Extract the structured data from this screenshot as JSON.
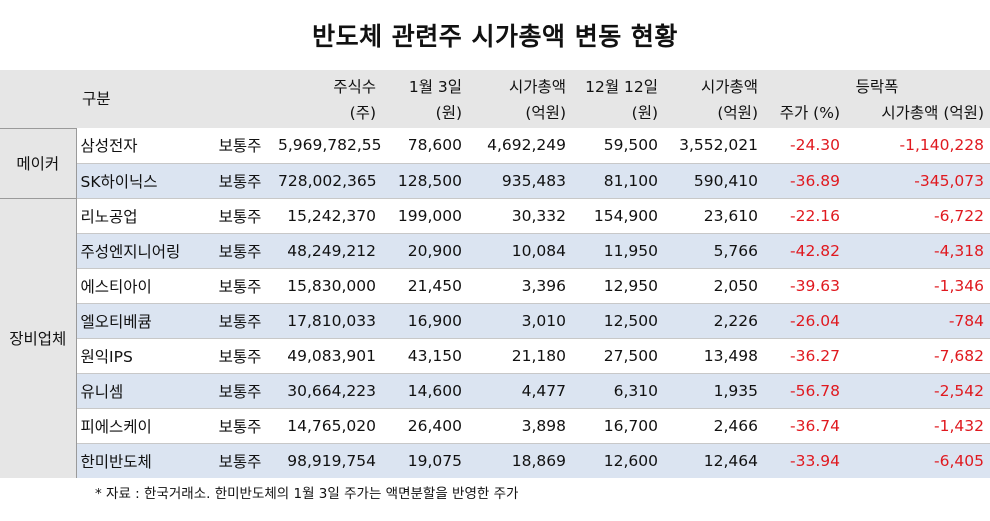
{
  "title": "반도체 관련주 시가총액 변동 현황",
  "header": {
    "category": "구분",
    "shares_1": "주식수",
    "shares_2": "(주)",
    "price_jan3_1": "1월 3일",
    "price_jan3_2": "(원)",
    "mcap_jan3_1": "시가총액",
    "mcap_jan3_2": "(억원)",
    "price_dec12_1": "12월 12일",
    "price_dec12_2": "(원)",
    "mcap_dec12_1": "시가총액",
    "mcap_dec12_2": "(억원)",
    "change_1": "등락폭",
    "change_price": "주가 (%)",
    "change_mcap": "시가총액 (억원)"
  },
  "groups": {
    "maker": "메이커",
    "equipment": "장비업체"
  },
  "rows": [
    {
      "name": "삼성전자",
      "type": "보통주",
      "shares": "5,969,782,550",
      "price_jan3": "78,600",
      "mcap_jan3": "4,692,249",
      "price_dec12": "59,500",
      "mcap_dec12": "3,552,021",
      "chg_price": "-24.30",
      "chg_mcap": "-1,140,228"
    },
    {
      "name": "SK하이닉스",
      "type": "보통주",
      "shares": "728,002,365",
      "price_jan3": "128,500",
      "mcap_jan3": "935,483",
      "price_dec12": "81,100",
      "mcap_dec12": "590,410",
      "chg_price": "-36.89",
      "chg_mcap": "-345,073"
    },
    {
      "name": "리노공업",
      "type": "보통주",
      "shares": "15,242,370",
      "price_jan3": "199,000",
      "mcap_jan3": "30,332",
      "price_dec12": "154,900",
      "mcap_dec12": "23,610",
      "chg_price": "-22.16",
      "chg_mcap": "-6,722"
    },
    {
      "name": "주성엔지니어링",
      "type": "보통주",
      "shares": "48,249,212",
      "price_jan3": "20,900",
      "mcap_jan3": "10,084",
      "price_dec12": "11,950",
      "mcap_dec12": "5,766",
      "chg_price": "-42.82",
      "chg_mcap": "-4,318"
    },
    {
      "name": "에스티아이",
      "type": "보통주",
      "shares": "15,830,000",
      "price_jan3": "21,450",
      "mcap_jan3": "3,396",
      "price_dec12": "12,950",
      "mcap_dec12": "2,050",
      "chg_price": "-39.63",
      "chg_mcap": "-1,346"
    },
    {
      "name": "엘오티베큠",
      "type": "보통주",
      "shares": "17,810,033",
      "price_jan3": "16,900",
      "mcap_jan3": "3,010",
      "price_dec12": "12,500",
      "mcap_dec12": "2,226",
      "chg_price": "-26.04",
      "chg_mcap": "-784"
    },
    {
      "name": "원익IPS",
      "type": "보통주",
      "shares": "49,083,901",
      "price_jan3": "43,150",
      "mcap_jan3": "21,180",
      "price_dec12": "27,500",
      "mcap_dec12": "13,498",
      "chg_price": "-36.27",
      "chg_mcap": "-7,682"
    },
    {
      "name": "유니셈",
      "type": "보통주",
      "shares": "30,664,223",
      "price_jan3": "14,600",
      "mcap_jan3": "4,477",
      "price_dec12": "6,310",
      "mcap_dec12": "1,935",
      "chg_price": "-56.78",
      "chg_mcap": "-2,542"
    },
    {
      "name": "피에스케이",
      "type": "보통주",
      "shares": "14,765,020",
      "price_jan3": "26,400",
      "mcap_jan3": "3,898",
      "price_dec12": "16,700",
      "mcap_dec12": "2,466",
      "chg_price": "-36.74",
      "chg_mcap": "-1,432"
    },
    {
      "name": "한미반도체",
      "type": "보통주",
      "shares": "98,919,754",
      "price_jan3": "19,075",
      "mcap_jan3": "18,869",
      "price_dec12": "12,600",
      "mcap_dec12": "12,464",
      "chg_price": "-33.94",
      "chg_mcap": "-6,405"
    }
  ],
  "footnote": "* 자료 : 한국거래소. 한미반도체의 1월 3일 주가는 액면분할을 반영한 주가",
  "colors": {
    "header_bg": "#e6e6e6",
    "row_shade": "#dbe4f1",
    "negative": "#e0191f"
  }
}
